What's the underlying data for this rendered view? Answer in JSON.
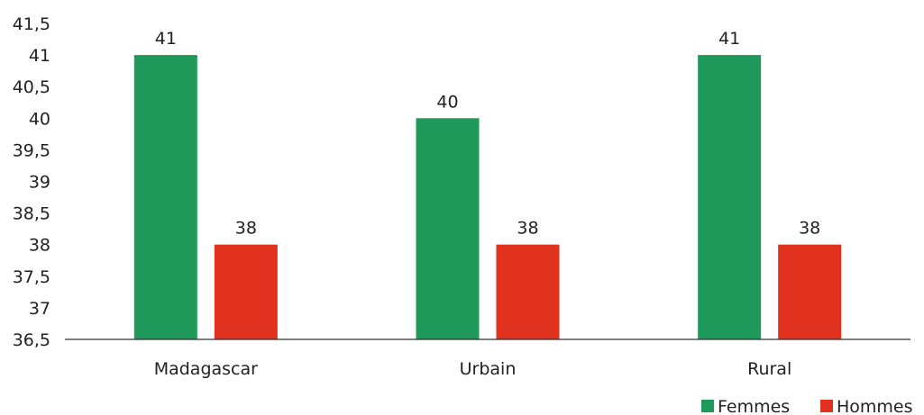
{
  "chart_data": {
    "type": "bar",
    "categories": [
      "Madagascar",
      "Urbain",
      "Rural"
    ],
    "series": [
      {
        "name": "Femmes",
        "values": [
          41,
          40,
          41
        ],
        "color": "#1f9a5a"
      },
      {
        "name": "Hommes",
        "values": [
          38,
          38,
          38
        ],
        "color": "#e0321e"
      }
    ],
    "ylim": [
      36.5,
      41.5
    ],
    "yticks": [
      "36,5",
      "37",
      "37,5",
      "38",
      "38,5",
      "39",
      "39,5",
      "40",
      "40,5",
      "41",
      "41,5"
    ],
    "ytick_values": [
      36.5,
      37,
      37.5,
      38,
      38.5,
      39,
      39.5,
      40,
      40.5,
      41,
      41.5
    ],
    "legend_position": "bottom-right",
    "grid": false
  }
}
